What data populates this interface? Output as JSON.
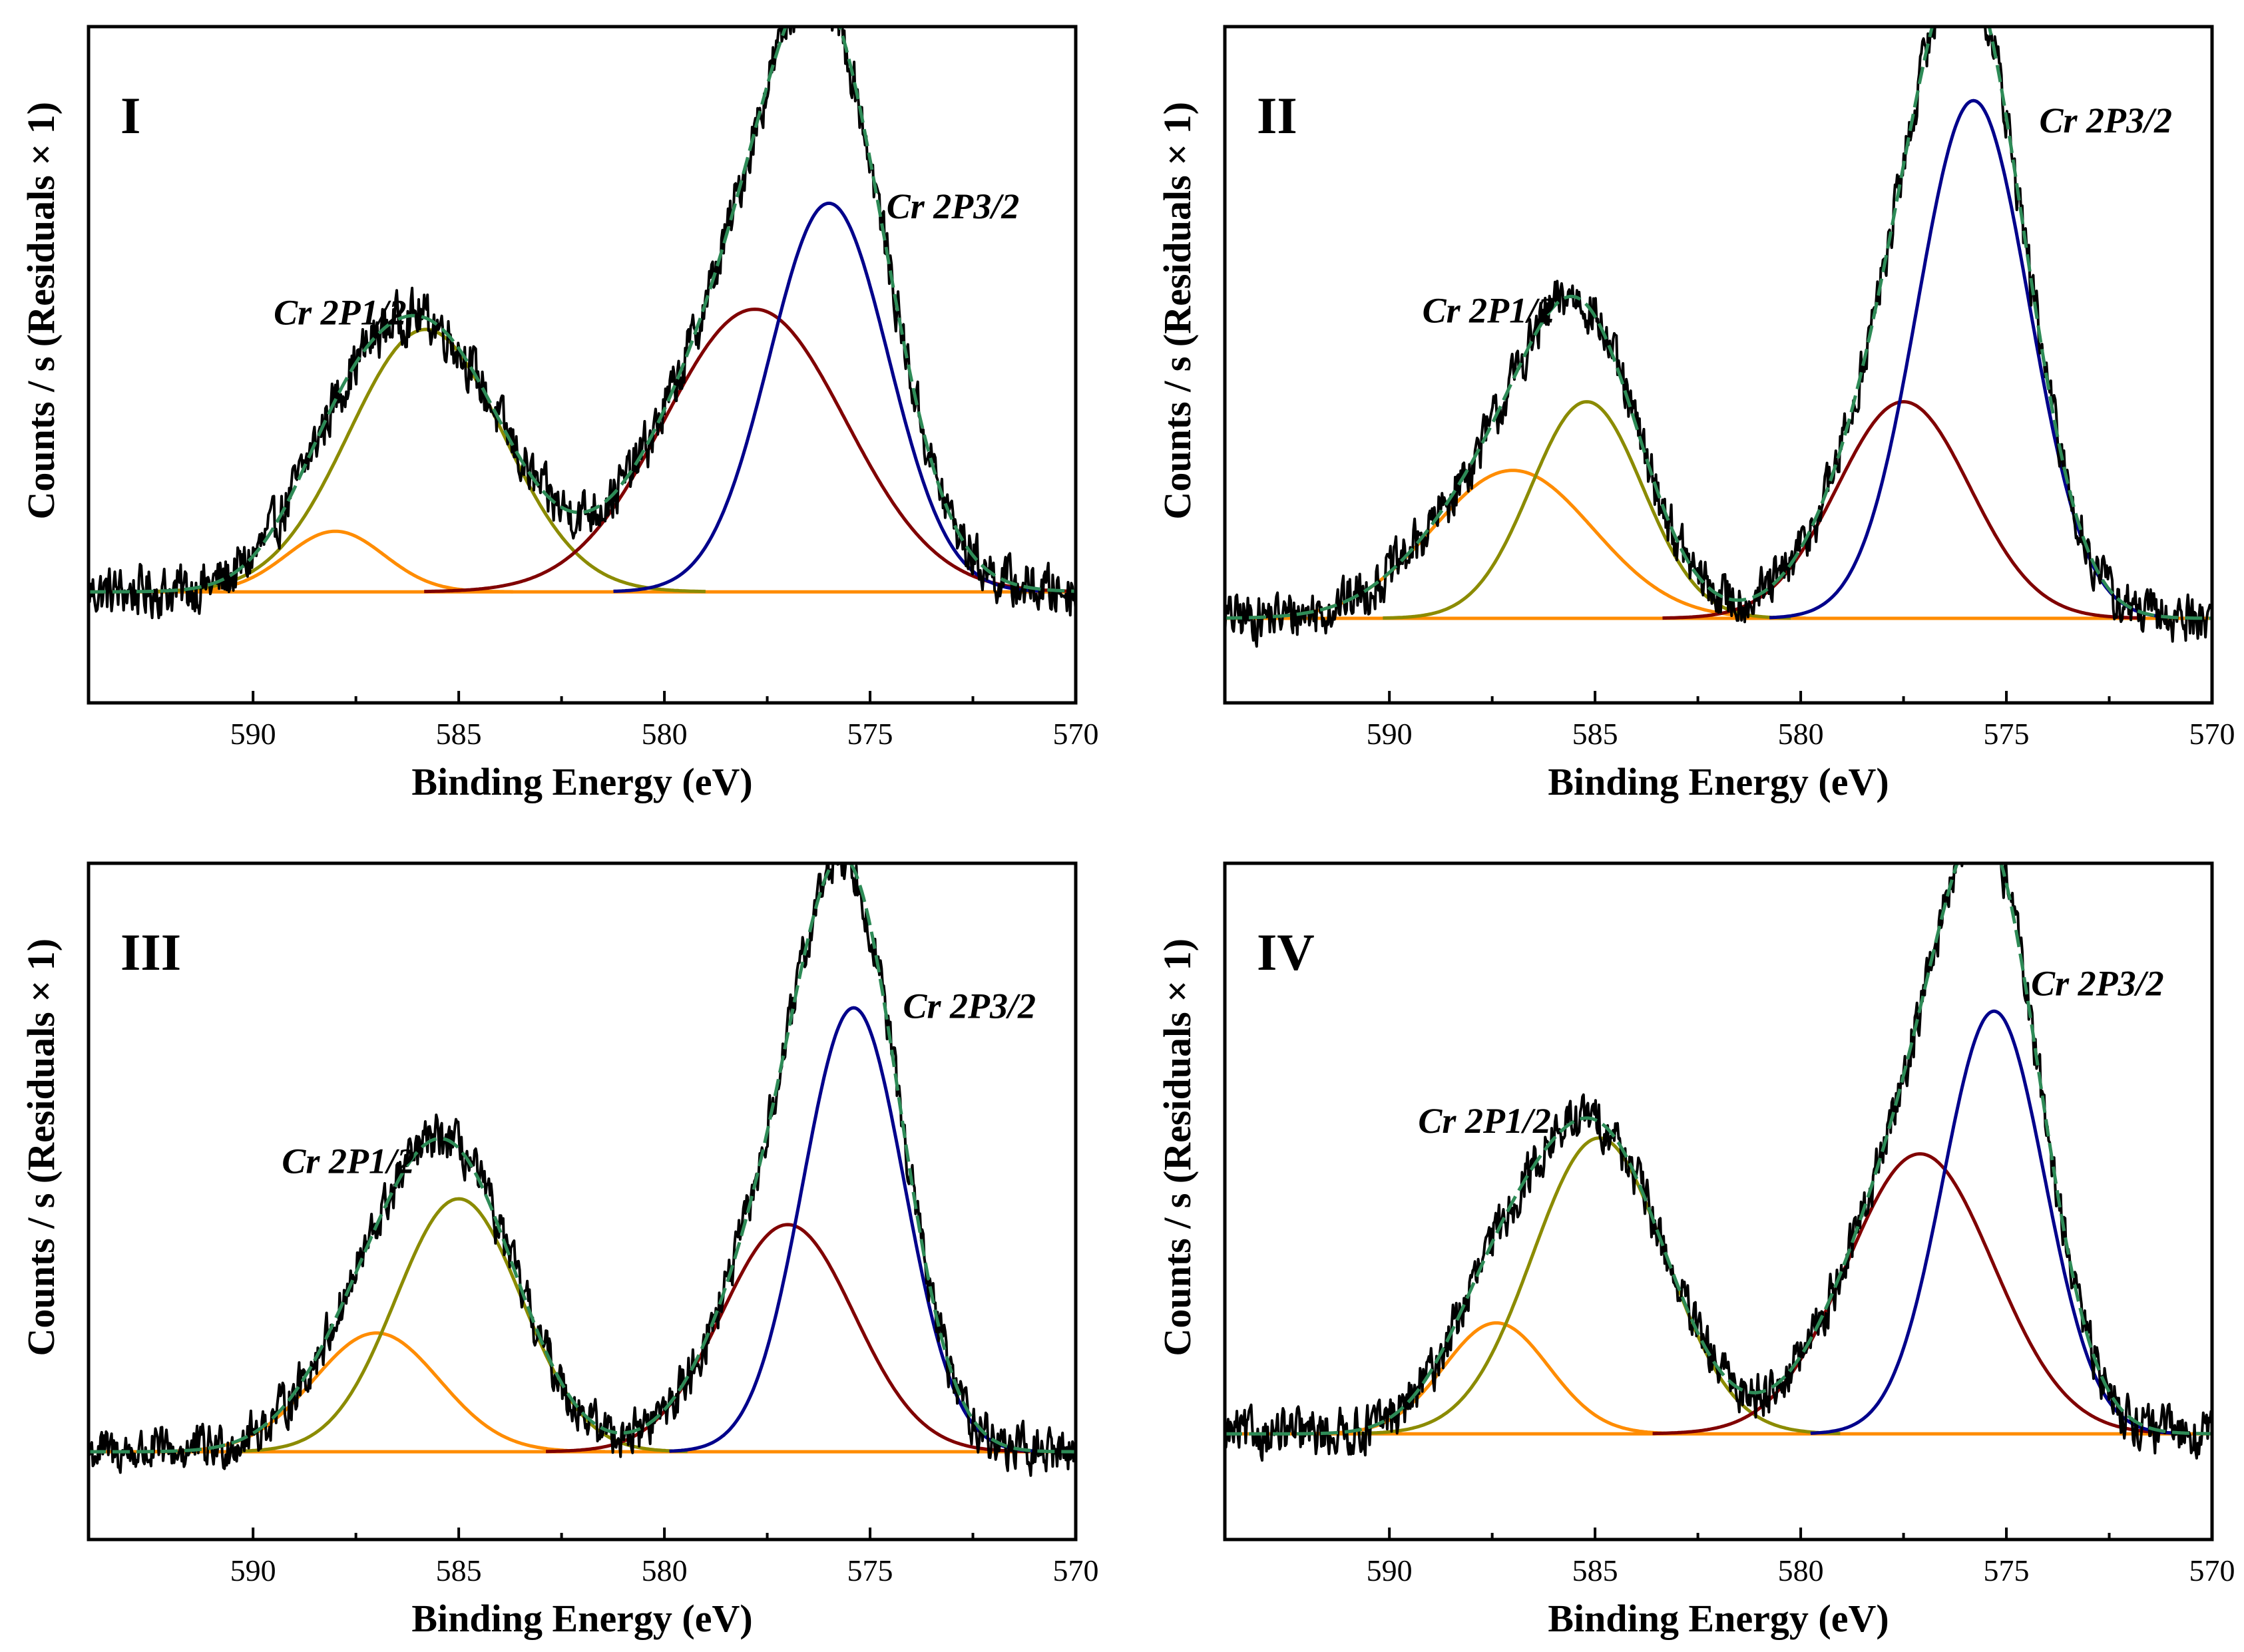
{
  "chart_data": [
    {
      "type": "line",
      "panel_label": "I",
      "xlabel": "Binding Energy (eV)",
      "ylabel": "Counts / s  (Residuals × 1)",
      "xlim": [
        594,
        570
      ],
      "xticks": [
        590,
        585,
        580,
        575,
        570
      ],
      "tick_labels": [
        "590",
        "585",
        "580",
        "575",
        "570"
      ],
      "ylim": [
        -0.22,
        1.12
      ],
      "baseline": 0.0,
      "annotations": [
        {
          "text": "Cr 2P1/2",
          "x": 589.5,
          "y": 0.53
        },
        {
          "text": "Cr 2P3/2",
          "x": 574.6,
          "y": 0.74
        }
      ],
      "components": [
        {
          "name": "Cr 2P1/2 component a",
          "color": "#ff8c00",
          "center": 588.0,
          "height": 0.12,
          "fwhm": 2.8
        },
        {
          "name": "Cr 2P1/2 component b",
          "color": "#8b8b00",
          "center": 585.8,
          "height": 0.52,
          "fwhm": 4.4
        },
        {
          "name": "Cr 2P3/2 component a",
          "color": "#800000",
          "center": 577.8,
          "height": 0.56,
          "fwhm": 5.2
        },
        {
          "name": "Cr 2P3/2 component b",
          "color": "#00008b",
          "center": 576.0,
          "height": 0.77,
          "fwhm": 3.4
        }
      ],
      "series": [
        {
          "name": "Raw data",
          "color": "#000000",
          "noise": 0.028
        },
        {
          "name": "Envelope fit",
          "color": "#2e8b57"
        },
        {
          "name": "Background",
          "color": "#ff8c00"
        }
      ]
    },
    {
      "type": "line",
      "panel_label": "II",
      "xlabel": "Binding Energy (eV)",
      "ylabel": "Counts / s  (Residuals × 1)",
      "xlim": [
        594,
        570
      ],
      "xticks": [
        590,
        585,
        580,
        575,
        570
      ],
      "tick_labels": [
        "590",
        "585",
        "580",
        "575",
        "570"
      ],
      "ylim": [
        -0.16,
        1.12
      ],
      "baseline": 0.0,
      "annotations": [
        {
          "text": "Cr 2P1/2",
          "x": 589.2,
          "y": 0.56
        },
        {
          "text": "Cr 2P3/2",
          "x": 574.2,
          "y": 0.92
        }
      ],
      "components": [
        {
          "name": "Cr 2P1/2 component a",
          "color": "#ff8c00",
          "center": 587.0,
          "height": 0.28,
          "fwhm": 4.6
        },
        {
          "name": "Cr 2P1/2 component b",
          "color": "#8b8b00",
          "center": 585.2,
          "height": 0.41,
          "fwhm": 3.2
        },
        {
          "name": "Cr 2P3/2 component a",
          "color": "#800000",
          "center": 577.5,
          "height": 0.41,
          "fwhm": 3.8
        },
        {
          "name": "Cr 2P3/2 component b",
          "color": "#00008b",
          "center": 575.8,
          "height": 0.98,
          "fwhm": 3.2
        }
      ],
      "series": [
        {
          "name": "Raw data",
          "color": "#000000",
          "noise": 0.026
        },
        {
          "name": "Envelope fit",
          "color": "#2e8b57"
        },
        {
          "name": "Background",
          "color": "#ff8c00"
        }
      ]
    },
    {
      "type": "line",
      "panel_label": "III",
      "xlabel": "Binding Energy (eV)",
      "ylabel": "Counts / s  (Residuals × 1)",
      "xlim": [
        594,
        570
      ],
      "xticks": [
        590,
        585,
        580,
        575,
        570
      ],
      "tick_labels": [
        "590",
        "585",
        "580",
        "575",
        "570"
      ],
      "ylim": [
        -0.17,
        1.14
      ],
      "baseline": 0.0,
      "annotations": [
        {
          "text": "Cr 2P1/2",
          "x": 589.3,
          "y": 0.54
        },
        {
          "text": "Cr 2P3/2",
          "x": 574.2,
          "y": 0.84
        }
      ],
      "components": [
        {
          "name": "Cr 2P1/2 component a",
          "color": "#ff8c00",
          "center": 587.0,
          "height": 0.23,
          "fwhm": 3.6
        },
        {
          "name": "Cr 2P1/2 component b",
          "color": "#8b8b00",
          "center": 585.0,
          "height": 0.49,
          "fwhm": 3.6
        },
        {
          "name": "Cr 2P3/2 component a",
          "color": "#800000",
          "center": 577.0,
          "height": 0.44,
          "fwhm": 3.8
        },
        {
          "name": "Cr 2P3/2 component b",
          "color": "#00008b",
          "center": 575.4,
          "height": 0.86,
          "fwhm": 2.9
        }
      ],
      "series": [
        {
          "name": "Raw data",
          "color": "#000000",
          "noise": 0.025
        },
        {
          "name": "Envelope fit",
          "color": "#2e8b57"
        },
        {
          "name": "Background",
          "color": "#ff8c00"
        }
      ]
    },
    {
      "type": "line",
      "panel_label": "IV",
      "xlabel": "Binding Energy (eV)",
      "ylabel": "Counts / s  (Residuals × 1)",
      "xlim": [
        594,
        570
      ],
      "xticks": [
        590,
        585,
        580,
        575,
        570
      ],
      "tick_labels": [
        "590",
        "585",
        "580",
        "575",
        "570"
      ],
      "ylim": [
        -0.2,
        1.08
      ],
      "baseline": 0.0,
      "annotations": [
        {
          "text": "Cr 2P1/2",
          "x": 589.3,
          "y": 0.57
        },
        {
          "text": "Cr 2P3/2",
          "x": 574.4,
          "y": 0.83
        }
      ],
      "components": [
        {
          "name": "Cr 2P1/2 component a",
          "color": "#ff8c00",
          "center": 587.4,
          "height": 0.21,
          "fwhm": 3.0
        },
        {
          "name": "Cr 2P1/2 component b",
          "color": "#8b8b00",
          "center": 584.9,
          "height": 0.56,
          "fwhm": 3.8
        },
        {
          "name": "Cr 2P3/2 component a",
          "color": "#800000",
          "center": 577.1,
          "height": 0.53,
          "fwhm": 4.2
        },
        {
          "name": "Cr 2P3/2 component b",
          "color": "#00008b",
          "center": 575.3,
          "height": 0.8,
          "fwhm": 2.9
        }
      ],
      "series": [
        {
          "name": "Raw data",
          "color": "#000000",
          "noise": 0.025
        },
        {
          "name": "Envelope fit",
          "color": "#2e8b57"
        },
        {
          "name": "Background",
          "color": "#ff8c00"
        }
      ]
    }
  ]
}
